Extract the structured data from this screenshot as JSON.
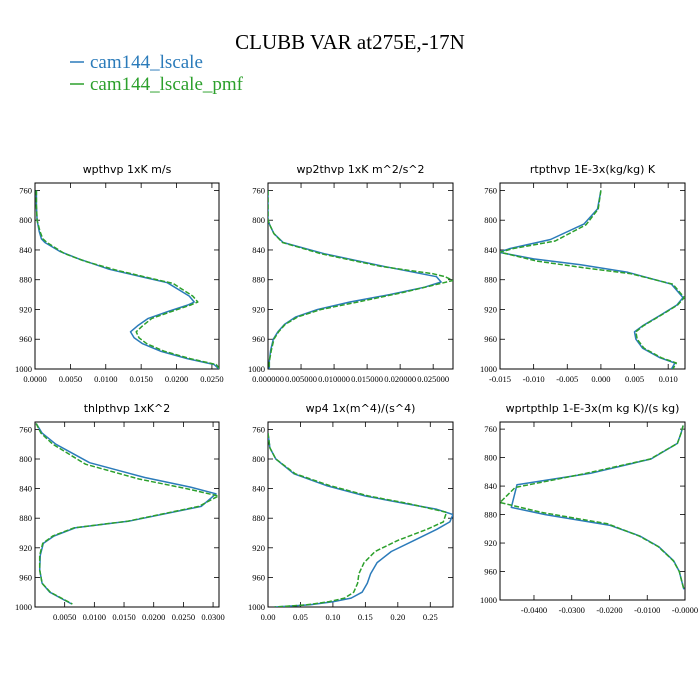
{
  "title": "CLUBB VAR at275E,-17N",
  "legend": [
    {
      "label": "cam144_lscale",
      "color": "#2b7bba"
    },
    {
      "label": "cam144_lscale_pmf",
      "color": "#2ca02c"
    }
  ],
  "chart_data": [
    {
      "type": "line",
      "title": "wpthvp  1xK m/s",
      "xlim": [
        0,
        0.026
      ],
      "ylim": [
        1000,
        750
      ],
      "xticks": [
        0.0,
        0.005,
        0.01,
        0.015,
        0.02,
        0.025
      ],
      "xticklabels": [
        "0.0000",
        "0.0050",
        "0.0100",
        "0.0150",
        "0.0200",
        "0.0250"
      ],
      "yticks": [
        760,
        800,
        840,
        880,
        920,
        960,
        1000
      ],
      "series": [
        {
          "name": "cam144_lscale",
          "x": [
            0.0002,
            0.0002,
            0.0003,
            0.0006,
            0.0009,
            0.0014,
            0.0035,
            0.0062,
            0.0105,
            0.0155,
            0.0187,
            0.0218,
            0.0225,
            0.0216,
            0.019,
            0.016,
            0.0145,
            0.0135,
            0.014,
            0.0152,
            0.0177,
            0.0215,
            0.0253,
            0.026
          ],
          "y": [
            760,
            780,
            800,
            815,
            825,
            830,
            842,
            852,
            866,
            877,
            884,
            902,
            910,
            914,
            922,
            932,
            942,
            950,
            958,
            966,
            976,
            986,
            994,
            1000
          ]
        },
        {
          "name": "cam144_lscale_pmf",
          "x": [
            0.0002,
            0.0002,
            0.0003,
            0.0007,
            0.0011,
            0.0017,
            0.0042,
            0.007,
            0.0114,
            0.0163,
            0.0195,
            0.0223,
            0.023,
            0.022,
            0.0195,
            0.0165,
            0.0152,
            0.0143,
            0.0147,
            0.0158,
            0.0182,
            0.0219,
            0.0256,
            0.0261
          ],
          "y": [
            760,
            780,
            800,
            815,
            825,
            830,
            845,
            855,
            867,
            878,
            885,
            902,
            910,
            914,
            922,
            932,
            942,
            950,
            958,
            966,
            976,
            986,
            994,
            1000
          ]
        }
      ]
    },
    {
      "type": "line",
      "title": "wp2thvp  1xK m^2/s^2",
      "xlim": [
        0,
        0.028
      ],
      "ylim": [
        1000,
        750
      ],
      "xticks": [
        0.0,
        0.005,
        0.01,
        0.015,
        0.02,
        0.025
      ],
      "xticklabels": [
        "0.000000",
        "0.005000",
        "0.010000",
        "0.015000",
        "0.020000",
        "0.025000"
      ],
      "yticks": [
        760,
        800,
        840,
        880,
        920,
        960,
        1000
      ],
      "series": [
        {
          "name": "cam144_lscale",
          "x": [
            0,
            0,
            0,
            0.0003,
            0.0009,
            0.0023,
            0.0085,
            0.0175,
            0.0255,
            0.0262,
            0.0237,
            0.0184,
            0.0124,
            0.0075,
            0.0042,
            0.0025,
            0.0015,
            0.0008,
            0.0004,
            0.0002,
            0.0002
          ],
          "y": [
            760,
            780,
            800,
            807,
            818,
            830,
            845,
            862,
            876,
            883,
            890,
            900,
            910,
            920,
            930,
            940,
            950,
            960,
            975,
            990,
            1000
          ]
        },
        {
          "name": "cam144_lscale_pmf",
          "x": [
            0,
            0,
            0,
            0.0003,
            0.0009,
            0.0022,
            0.008,
            0.017,
            0.025,
            0.0268,
            0.028,
            0.0205,
            0.0136,
            0.008,
            0.0045,
            0.0026,
            0.0016,
            0.0009,
            0.0005,
            0.0002,
            0.0002
          ],
          "y": [
            760,
            780,
            800,
            807,
            818,
            830,
            845,
            862,
            872,
            876,
            881,
            897,
            910,
            920,
            930,
            940,
            950,
            960,
            975,
            990,
            1000
          ]
        }
      ]
    },
    {
      "type": "line",
      "title": "rtpthvp  1E-3x(kg/kg) K",
      "xlim": [
        -0.015,
        0.0125
      ],
      "ylim": [
        1000,
        750
      ],
      "xticks": [
        -0.015,
        -0.01,
        -0.005,
        0.0,
        0.005,
        0.01
      ],
      "xticklabels": [
        "-0.015",
        "-0.010",
        "-0.005",
        "0.000",
        "0.005",
        "0.010"
      ],
      "yticks": [
        760,
        800,
        840,
        880,
        920,
        960,
        1000
      ],
      "series": [
        {
          "name": "cam144_lscale",
          "x": [
            0.0,
            -0.0005,
            -0.0025,
            -0.0075,
            -0.0135,
            -0.0152,
            -0.01,
            -0.003,
            0.004,
            0.0105,
            0.0122,
            0.0113,
            0.0088,
            0.0062,
            0.005,
            0.0052,
            0.0062,
            0.0088,
            0.011,
            0.0105
          ],
          "y": [
            760,
            785,
            805,
            826,
            838,
            843,
            852,
            860,
            870,
            886,
            904,
            914,
            928,
            942,
            950,
            960,
            972,
            985,
            992,
            1000
          ]
        },
        {
          "name": "cam144_lscale_pmf",
          "x": [
            0.0,
            -0.0004,
            -0.0022,
            -0.0068,
            -0.013,
            -0.015,
            -0.0095,
            -0.0025,
            0.0045,
            0.0107,
            0.0124,
            0.0114,
            0.0089,
            0.0063,
            0.0052,
            0.0054,
            0.0064,
            0.009,
            0.0112,
            0.0107
          ],
          "y": [
            760,
            785,
            806,
            828,
            838,
            843,
            855,
            864,
            872,
            886,
            904,
            914,
            928,
            942,
            950,
            960,
            972,
            985,
            992,
            1000
          ]
        }
      ]
    },
    {
      "type": "line",
      "title": "thlpthvp  1xK^2",
      "xlim": [
        0,
        0.031
      ],
      "ylim": [
        1000,
        750
      ],
      "xticks": [
        0.005,
        0.01,
        0.015,
        0.02,
        0.025,
        0.03
      ],
      "xticklabels": [
        "0.0050",
        "0.0100",
        "0.0150",
        "0.0200",
        "0.0250",
        "0.0300"
      ],
      "yticks": [
        760,
        800,
        840,
        880,
        920,
        960,
        1000
      ],
      "series": [
        {
          "name": "cam144_lscale",
          "x": [
            0.0002,
            0.0012,
            0.0035,
            0.0092,
            0.0185,
            0.0262,
            0.0305,
            0.028,
            0.0158,
            0.0068,
            0.0032,
            0.0014,
            0.0009,
            0.0008,
            0.0012,
            0.0025,
            0.0048,
            0.0062
          ],
          "y": [
            752,
            765,
            780,
            805,
            825,
            838,
            847,
            864,
            884,
            893,
            904,
            914,
            930,
            950,
            968,
            980,
            990,
            996
          ]
        },
        {
          "name": "cam144_lscale_pmf",
          "x": [
            0.0002,
            0.001,
            0.003,
            0.0085,
            0.0175,
            0.0255,
            0.0309,
            0.0276,
            0.0156,
            0.0066,
            0.003,
            0.0013,
            0.0008,
            0.0008,
            0.0012,
            0.0026,
            0.0049,
            0.0063
          ],
          "y": [
            752,
            765,
            780,
            807,
            827,
            840,
            850,
            864,
            884,
            893,
            904,
            914,
            930,
            950,
            968,
            980,
            990,
            996
          ]
        }
      ]
    },
    {
      "type": "line",
      "title": "wp4  1x(m^4)/(s^4)",
      "xlim": [
        0,
        0.285
      ],
      "ylim": [
        1000,
        750
      ],
      "xticks": [
        0.0,
        0.05,
        0.1,
        0.15,
        0.2,
        0.25
      ],
      "xticklabels": [
        "0.00",
        "0.05",
        "0.10",
        "0.15",
        "0.20",
        "0.25"
      ],
      "yticks": [
        760,
        800,
        840,
        880,
        920,
        960,
        1000
      ],
      "series": [
        {
          "name": "cam144_lscale",
          "x": [
            0.0,
            0.003,
            0.012,
            0.04,
            0.09,
            0.15,
            0.21,
            0.26,
            0.285,
            0.28,
            0.26,
            0.225,
            0.19,
            0.168,
            0.158,
            0.153,
            0.145,
            0.128,
            0.1,
            0.065,
            0.03,
            0.01
          ],
          "y": [
            765,
            785,
            800,
            820,
            836,
            850,
            860,
            868,
            875,
            885,
            895,
            910,
            925,
            940,
            955,
            968,
            980,
            988,
            993,
            997,
            999,
            1000
          ]
        },
        {
          "name": "cam144_lscale_pmf",
          "x": [
            0.0,
            0.003,
            0.012,
            0.042,
            0.095,
            0.155,
            0.215,
            0.255,
            0.275,
            0.27,
            0.245,
            0.2,
            0.165,
            0.148,
            0.14,
            0.138,
            0.132,
            0.118,
            0.093,
            0.06,
            0.028,
            0.01
          ],
          "y": [
            765,
            785,
            800,
            820,
            836,
            850,
            860,
            868,
            872,
            885,
            895,
            910,
            925,
            940,
            955,
            968,
            980,
            988,
            993,
            997,
            999,
            1000
          ]
        }
      ]
    },
    {
      "type": "line",
      "title": "wprtpthlp  1-E-3x(m kg K)/(s kg)",
      "xlim": [
        -0.049,
        0.0
      ],
      "ylim": [
        1000,
        750
      ],
      "xticks": [
        -0.04,
        -0.03,
        -0.02,
        -0.01,
        0.0
      ],
      "xticklabels": [
        "-0.0400",
        "-0.0300",
        "-0.0200",
        "-0.0100",
        "-0.0000"
      ],
      "yticks": [
        760,
        800,
        840,
        880,
        920,
        960,
        1000
      ],
      "series": [
        {
          "name": "cam144_lscale",
          "x": [
            -0.0005,
            -0.001,
            -0.002,
            -0.009,
            -0.025,
            -0.0445,
            -0.046,
            -0.037,
            -0.02,
            -0.012,
            -0.007,
            -0.003,
            -0.0015,
            -0.0008,
            -0.0003
          ],
          "y": [
            755,
            765,
            780,
            802,
            822,
            838,
            870,
            880,
            895,
            910,
            925,
            945,
            960,
            975,
            985
          ]
        },
        {
          "name": "cam144_lscale_pmf",
          "x": [
            -0.0005,
            -0.001,
            -0.002,
            -0.0092,
            -0.027,
            -0.045,
            -0.049,
            -0.038,
            -0.0205,
            -0.0122,
            -0.0071,
            -0.0031,
            -0.0015,
            -0.0008,
            -0.0003
          ],
          "y": [
            755,
            765,
            780,
            802,
            823,
            842,
            863,
            877,
            893,
            910,
            925,
            945,
            960,
            975,
            985
          ]
        }
      ]
    }
  ]
}
